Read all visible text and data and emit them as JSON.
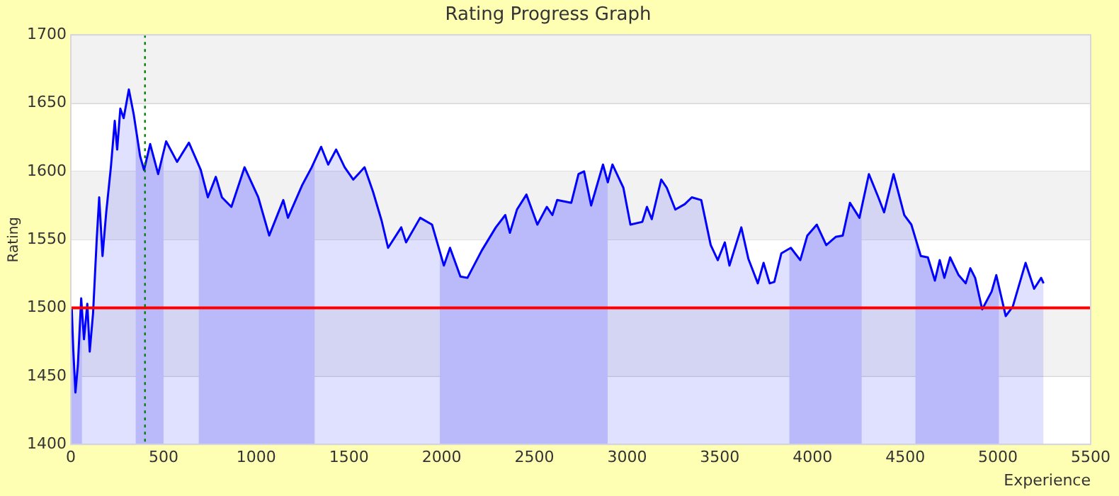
{
  "chart_data": {
    "type": "area",
    "title": "Rating Progress Graph",
    "xlabel": "Experience",
    "ylabel": "Rating",
    "xlim": [
      0,
      5500
    ],
    "xticks": [
      0,
      500,
      1000,
      1500,
      2000,
      2500,
      3000,
      3500,
      4000,
      4500,
      5000,
      5500
    ],
    "ylim": [
      1400,
      1700
    ],
    "yticks": [
      1400,
      1450,
      1500,
      1550,
      1600,
      1650,
      1700
    ],
    "grid": "y",
    "legend": false,
    "marker": "none",
    "x": [
      0,
      5,
      13,
      25,
      38,
      56,
      71,
      89,
      102,
      120,
      140,
      153,
      171,
      191,
      216,
      237,
      250,
      267,
      285,
      313,
      339,
      374,
      395,
      428,
      471,
      514,
      573,
      637,
      701,
      739,
      782,
      815,
      866,
      937,
      1011,
      1070,
      1146,
      1171,
      1248,
      1299,
      1350,
      1388,
      1431,
      1477,
      1523,
      1584,
      1630,
      1676,
      1711,
      1782,
      1808,
      1884,
      1948,
      2012,
      2045,
      2101,
      2139,
      2216,
      2292,
      2343,
      2368,
      2406,
      2457,
      2516,
      2567,
      2597,
      2623,
      2699,
      2738,
      2768,
      2806,
      2870,
      2896,
      2921,
      2980,
      3018,
      3082,
      3107,
      3133,
      3184,
      3214,
      3260,
      3311,
      3349,
      3400,
      3451,
      3489,
      3527,
      3552,
      3616,
      3654,
      3705,
      3736,
      3769,
      3794,
      3832,
      3883,
      3934,
      3972,
      4023,
      4074,
      4125,
      4163,
      4202,
      4253,
      4304,
      4355,
      4386,
      4437,
      4495,
      4533,
      4584,
      4622,
      4660,
      4686,
      4711,
      4742,
      4788,
      4826,
      4851,
      4877,
      4915,
      4966,
      4991,
      5042,
      5080,
      5149,
      5195,
      5233,
      5246
    ],
    "series": [
      {
        "color": "#0000ff",
        "values": [
          1500,
          1500,
          1470,
          1438,
          1458,
          1507,
          1477,
          1503,
          1468,
          1496,
          1551,
          1581,
          1538,
          1570,
          1603,
          1637,
          1616,
          1646,
          1639,
          1660,
          1642,
          1611,
          1601,
          1620,
          1598,
          1622,
          1607,
          1621,
          1601,
          1581,
          1596,
          1581,
          1574,
          1603,
          1581,
          1553,
          1579,
          1566,
          1590,
          1603,
          1618,
          1605,
          1616,
          1603,
          1594,
          1603,
          1585,
          1564,
          1544,
          1559,
          1548,
          1566,
          1561,
          1531,
          1544,
          1523,
          1522,
          1542,
          1559,
          1568,
          1555,
          1572,
          1583,
          1561,
          1574,
          1568,
          1579,
          1577,
          1598,
          1600,
          1575,
          1605,
          1592,
          1605,
          1588,
          1561,
          1563,
          1574,
          1565,
          1594,
          1588,
          1572,
          1576,
          1581,
          1579,
          1546,
          1535,
          1548,
          1531,
          1559,
          1536,
          1518,
          1533,
          1518,
          1519,
          1540,
          1544,
          1535,
          1553,
          1561,
          1546,
          1552,
          1553,
          1577,
          1566,
          1598,
          1581,
          1570,
          1598,
          1568,
          1561,
          1538,
          1537,
          1520,
          1535,
          1522,
          1537,
          1524,
          1518,
          1529,
          1522,
          1499,
          1512,
          1524,
          1494,
          1501,
          1533,
          1514,
          1522,
          1518
        ]
      }
    ],
    "bands": [
      {
        "axis": "y",
        "from": 1450,
        "to": 1500,
        "color": "#f2f2f2"
      },
      {
        "axis": "y",
        "from": 1550,
        "to": 1600,
        "color": "#f2f2f2"
      },
      {
        "axis": "y",
        "from": 1650,
        "to": 1700,
        "color": "#f2f2f2"
      },
      {
        "axis": "x",
        "from": 0,
        "to": 60,
        "color": "#d4d4fa"
      },
      {
        "axis": "x",
        "from": 350,
        "to": 500,
        "color": "#d4d4fa"
      },
      {
        "axis": "x",
        "from": 690,
        "to": 1315,
        "color": "#d4d4fa"
      },
      {
        "axis": "x",
        "from": 1990,
        "to": 2895,
        "color": "#d4d4fa"
      },
      {
        "axis": "x",
        "from": 3875,
        "to": 4265,
        "color": "#d4d4fa"
      },
      {
        "axis": "x",
        "from": 4555,
        "to": 5005,
        "color": "#d4d4fa"
      }
    ],
    "ref_lines": [
      {
        "axis": "y",
        "value": 1500,
        "color": "#ff0000",
        "line_style": "solid"
      },
      {
        "axis": "x",
        "value": 400,
        "color": "#008000",
        "line_style": "dotted"
      }
    ]
  }
}
